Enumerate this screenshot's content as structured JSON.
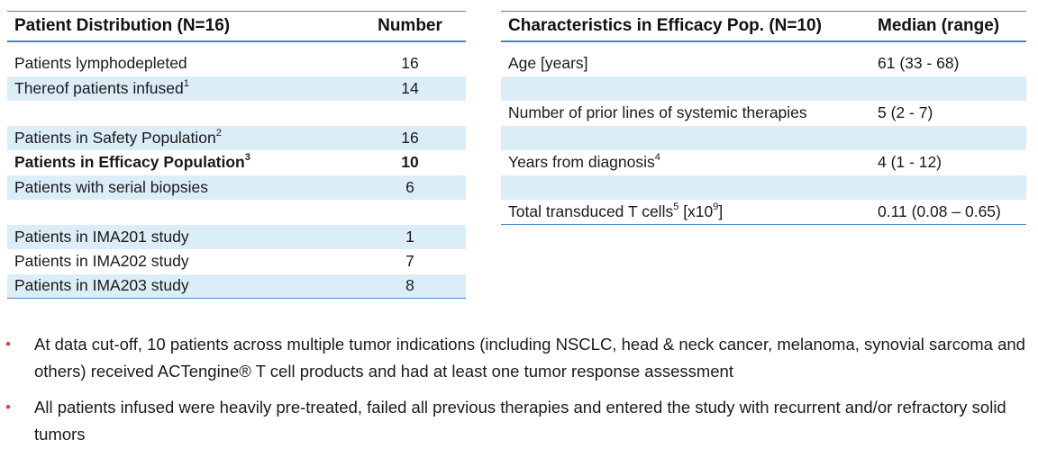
{
  "left_table": {
    "header": {
      "label": "Patient Distribution (N=16)",
      "value": "Number"
    },
    "rows": [
      {
        "label": "Patients lymphodepleted",
        "value": "16"
      },
      {
        "label": "Thereof patients infused",
        "sup": "1",
        "value": "14"
      },
      {
        "label": "Patients in Safety Population",
        "sup": "2",
        "value": "16"
      },
      {
        "label": "Patients in Efficacy Population",
        "sup": "3",
        "value": "10"
      },
      {
        "label": "Patients with serial biopsies",
        "value": "6"
      },
      {
        "label": "Patients in IMA201 study",
        "value": "1"
      },
      {
        "label": "Patients in IMA202 study",
        "value": "7"
      },
      {
        "label": "Patients in IMA203 study",
        "value": "8"
      }
    ]
  },
  "right_table": {
    "header": {
      "label": "Characteristics in Efficacy Pop. (N=10)",
      "value": "Median (range)"
    },
    "rows": [
      {
        "label": "Age [years]",
        "value": "61 (33 - 68)"
      },
      {
        "label": "Number of prior lines of systemic therapies",
        "value": "5 (2 - 7)"
      },
      {
        "label": "Years from diagnosis",
        "sup": "4",
        "value": "4 (1 - 12)"
      },
      {
        "label_pre": "Total transduced T cells",
        "sup": "5",
        "label_mid": " [x10",
        "sup2": "9",
        "label_post": "]",
        "value": "0.11 (0.08 – 0.65)"
      }
    ]
  },
  "bullets": [
    "At data cut-off, 10 patients across multiple tumor indications (including NSCLC, head & neck cancer, melanoma, synovial sarcoma and others) received ACTengine® T cell products and had at least one tumor response assessment",
    "All patients infused were heavily pre-treated, failed all previous therapies and entered the study with recurrent and/or refractory solid tumors"
  ],
  "bullet_marker": "•",
  "colors": {
    "rule": "#4f81bd",
    "shade": "#dbeef8",
    "bullet": "#e8423b"
  }
}
